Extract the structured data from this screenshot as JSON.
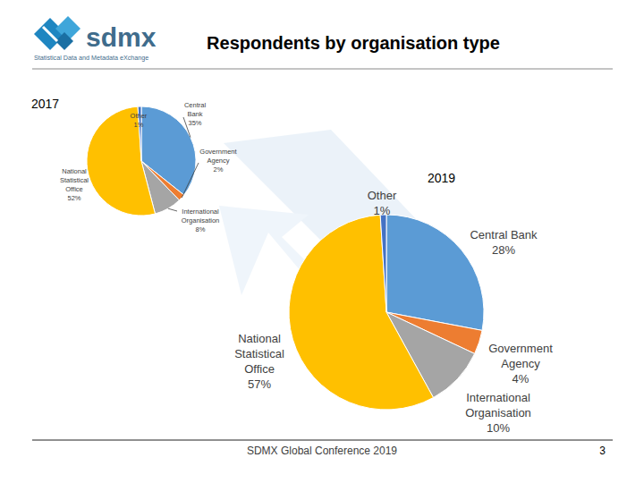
{
  "header": {
    "logo": "sdmx",
    "logo_subtitle": "Statistical Data and Metadata eXchange",
    "title": "Respondents by organisation type"
  },
  "chart_data": [
    {
      "type": "pie",
      "title": "2017",
      "categories": [
        "Central Bank",
        "Government Agency",
        "International Organisation",
        "National Statistical Office",
        "Other"
      ],
      "values": [
        35,
        2,
        8,
        52,
        1
      ],
      "value_labels": [
        "35%",
        "2%",
        "8%",
        "52%",
        "1%"
      ],
      "colors": [
        "#5b9bd5",
        "#ed7d31",
        "#a5a5a5",
        "#ffc000",
        "#4472c4"
      ],
      "data_labels": true
    },
    {
      "type": "pie",
      "title": "2019",
      "categories": [
        "Central Bank",
        "Government Agency",
        "International Organisation",
        "National Statistical Office",
        "Other"
      ],
      "values": [
        28,
        4,
        10,
        57,
        1
      ],
      "value_labels": [
        "28%",
        "4%",
        "10%",
        "57%",
        "1%"
      ],
      "colors": [
        "#5b9bd5",
        "#ed7d31",
        "#a5a5a5",
        "#ffc000",
        "#4472c4"
      ],
      "data_labels": true
    }
  ],
  "footer": {
    "text": "SDMX Global Conference 2019",
    "page": "3"
  }
}
